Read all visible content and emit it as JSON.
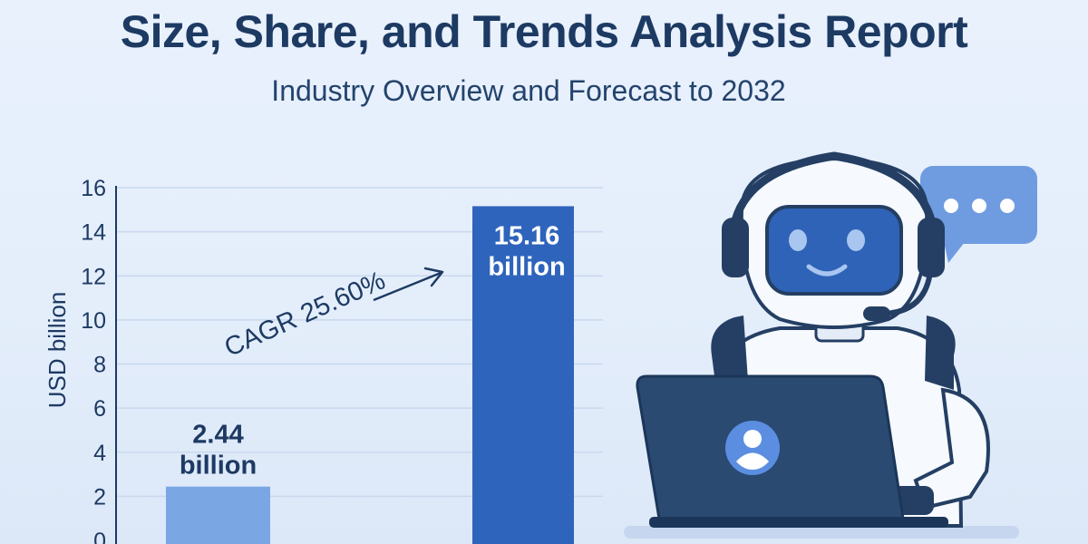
{
  "header": {
    "title": "Size, Share, and Trends Analysis Report",
    "subtitle": "Industry Overview and Forecast to 2032"
  },
  "chart_data": {
    "type": "bar",
    "title": "Size, Share, and Trends Analysis Report",
    "subtitle": "Industry Overview and Forecast to 2032",
    "categories": [
      "",
      ""
    ],
    "values": [
      2.44,
      15.16
    ],
    "data_labels": [
      [
        "2.44",
        "billion"
      ],
      [
        "15.16",
        "billion"
      ]
    ],
    "bar_colors": [
      "#7aa7e4",
      "#2f64bc"
    ],
    "xlabel": "",
    "ylabel": "USD billion",
    "ylim": [
      0,
      16
    ],
    "yticks": [
      0,
      2,
      4,
      6,
      8,
      10,
      12,
      14,
      16
    ],
    "grid": true,
    "annotation": "CAGR 25.60%"
  },
  "colors": {
    "title": "#1d3a63",
    "axis_text": "#1d3a63",
    "grid": "#c9d8ee",
    "robot_dark": "#243f63",
    "robot_face": "#2f63b7",
    "speech_bubble": "#6f9ce0",
    "laptop": "#2a4a72"
  },
  "illustration": {
    "robot_icon": "robot-support-agent",
    "laptop_icon": "laptop",
    "user_icon": "user-icon",
    "bubble_icon": "speech-bubble-icon"
  }
}
